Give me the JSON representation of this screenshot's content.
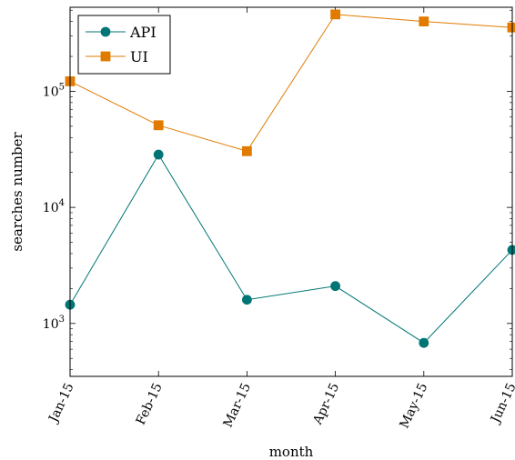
{
  "chart_data": {
    "type": "line",
    "categories": [
      "Jan-15",
      "Feb-15",
      "Mar-15",
      "Apr-15",
      "May-15",
      "Jun-15"
    ],
    "series": [
      {
        "name": "API",
        "color": "#007575",
        "marker": "circle",
        "values": [
          1450,
          28500,
          1600,
          2100,
          680,
          4300
        ]
      },
      {
        "name": "UI",
        "color": "#E07B00",
        "marker": "square",
        "values": [
          122000,
          51000,
          30500,
          460000,
          400000,
          355000
        ]
      }
    ],
    "xlabel": "month",
    "ylabel": "searches number",
    "yscale": "log",
    "ylim": [
      350,
      530000
    ],
    "yticks": [
      {
        "value": 1000,
        "base": "10",
        "exp": "3"
      },
      {
        "value": 10000,
        "base": "10",
        "exp": "4"
      },
      {
        "value": 100000,
        "base": "10",
        "exp": "5"
      }
    ],
    "grid": false,
    "legend_position": "top-left"
  }
}
